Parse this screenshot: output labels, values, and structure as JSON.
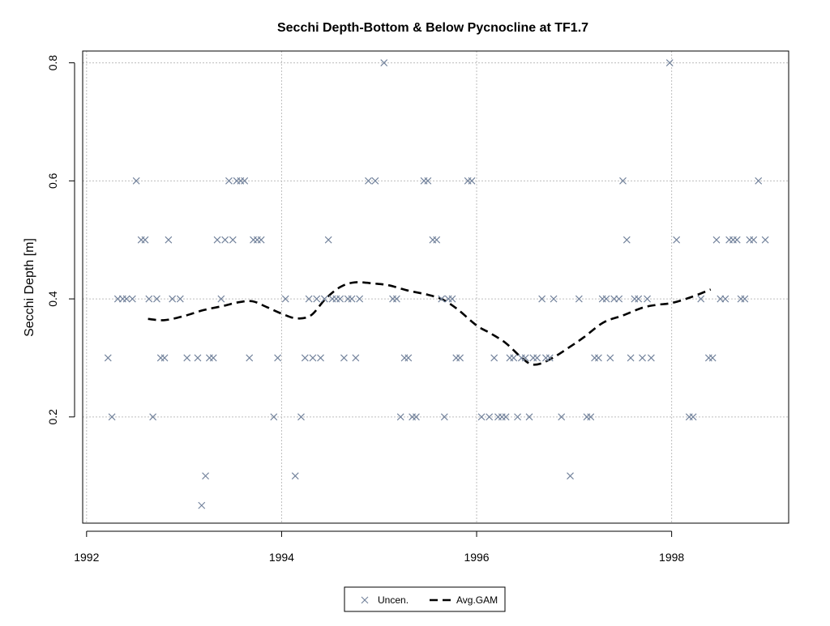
{
  "chart_data": {
    "type": "scatter",
    "title": "Secchi Depth-Bottom & Below Pycnocline at TF1.7",
    "xlabel": "",
    "ylabel": "Secchi Depth [m]",
    "xlim": [
      1991.96,
      1999.2
    ],
    "ylim": [
      0.02,
      0.82
    ],
    "x_ticks": [
      1992,
      1994,
      1996,
      1998
    ],
    "y_ticks": [
      0.2,
      0.4,
      0.6,
      0.8
    ],
    "x_tick_labels": [
      "1992",
      "1994",
      "1996",
      "1998"
    ],
    "y_tick_labels": [
      "0.2",
      "0.4",
      "0.6",
      "0.8"
    ],
    "grid": true,
    "legend": {
      "placement": "bottom-center"
    },
    "series": [
      {
        "name": "Uncen.",
        "marker": "x",
        "color": "#70809a",
        "points": [
          [
            1992.22,
            0.3
          ],
          [
            1992.26,
            0.2
          ],
          [
            1992.32,
            0.4
          ],
          [
            1992.37,
            0.4
          ],
          [
            1992.41,
            0.4
          ],
          [
            1992.47,
            0.4
          ],
          [
            1992.51,
            0.6
          ],
          [
            1992.56,
            0.5
          ],
          [
            1992.6,
            0.5
          ],
          [
            1992.64,
            0.4
          ],
          [
            1992.68,
            0.2
          ],
          [
            1992.72,
            0.4
          ],
          [
            1992.76,
            0.3
          ],
          [
            1992.8,
            0.3
          ],
          [
            1992.84,
            0.5
          ],
          [
            1992.88,
            0.4
          ],
          [
            1992.96,
            0.4
          ],
          [
            1993.03,
            0.3
          ],
          [
            1993.14,
            0.3
          ],
          [
            1993.18,
            0.05
          ],
          [
            1993.22,
            0.1
          ],
          [
            1993.26,
            0.3
          ],
          [
            1993.3,
            0.3
          ],
          [
            1993.34,
            0.5
          ],
          [
            1993.38,
            0.4
          ],
          [
            1993.42,
            0.5
          ],
          [
            1993.46,
            0.6
          ],
          [
            1993.5,
            0.5
          ],
          [
            1993.54,
            0.6
          ],
          [
            1993.58,
            0.6
          ],
          [
            1993.62,
            0.6
          ],
          [
            1993.67,
            0.3
          ],
          [
            1993.71,
            0.5
          ],
          [
            1993.75,
            0.5
          ],
          [
            1993.79,
            0.5
          ],
          [
            1993.92,
            0.2
          ],
          [
            1993.96,
            0.3
          ],
          [
            1994.04,
            0.4
          ],
          [
            1994.14,
            0.1
          ],
          [
            1994.2,
            0.2
          ],
          [
            1994.24,
            0.3
          ],
          [
            1994.28,
            0.4
          ],
          [
            1994.32,
            0.3
          ],
          [
            1994.36,
            0.4
          ],
          [
            1994.4,
            0.3
          ],
          [
            1994.44,
            0.4
          ],
          [
            1994.48,
            0.5
          ],
          [
            1994.52,
            0.4
          ],
          [
            1994.56,
            0.4
          ],
          [
            1994.6,
            0.4
          ],
          [
            1994.64,
            0.3
          ],
          [
            1994.68,
            0.4
          ],
          [
            1994.72,
            0.4
          ],
          [
            1994.76,
            0.3
          ],
          [
            1994.8,
            0.4
          ],
          [
            1994.89,
            0.6
          ],
          [
            1994.96,
            0.6
          ],
          [
            1995.05,
            0.8
          ],
          [
            1995.14,
            0.4
          ],
          [
            1995.18,
            0.4
          ],
          [
            1995.22,
            0.2
          ],
          [
            1995.26,
            0.3
          ],
          [
            1995.3,
            0.3
          ],
          [
            1995.34,
            0.2
          ],
          [
            1995.38,
            0.2
          ],
          [
            1995.46,
            0.6
          ],
          [
            1995.5,
            0.6
          ],
          [
            1995.55,
            0.5
          ],
          [
            1995.59,
            0.5
          ],
          [
            1995.64,
            0.4
          ],
          [
            1995.67,
            0.2
          ],
          [
            1995.71,
            0.4
          ],
          [
            1995.75,
            0.4
          ],
          [
            1995.79,
            0.3
          ],
          [
            1995.83,
            0.3
          ],
          [
            1995.91,
            0.6
          ],
          [
            1995.95,
            0.6
          ],
          [
            1996.05,
            0.2
          ],
          [
            1996.13,
            0.2
          ],
          [
            1996.18,
            0.3
          ],
          [
            1996.22,
            0.2
          ],
          [
            1996.26,
            0.2
          ],
          [
            1996.3,
            0.2
          ],
          [
            1996.34,
            0.3
          ],
          [
            1996.38,
            0.3
          ],
          [
            1996.42,
            0.2
          ],
          [
            1996.46,
            0.3
          ],
          [
            1996.5,
            0.3
          ],
          [
            1996.54,
            0.2
          ],
          [
            1996.58,
            0.3
          ],
          [
            1996.62,
            0.3
          ],
          [
            1996.67,
            0.4
          ],
          [
            1996.71,
            0.3
          ],
          [
            1996.75,
            0.3
          ],
          [
            1996.79,
            0.4
          ],
          [
            1996.87,
            0.2
          ],
          [
            1996.96,
            0.1
          ],
          [
            1997.05,
            0.4
          ],
          [
            1997.13,
            0.2
          ],
          [
            1997.17,
            0.2
          ],
          [
            1997.21,
            0.3
          ],
          [
            1997.25,
            0.3
          ],
          [
            1997.29,
            0.4
          ],
          [
            1997.33,
            0.4
          ],
          [
            1997.37,
            0.3
          ],
          [
            1997.41,
            0.4
          ],
          [
            1997.46,
            0.4
          ],
          [
            1997.5,
            0.6
          ],
          [
            1997.54,
            0.5
          ],
          [
            1997.58,
            0.3
          ],
          [
            1997.62,
            0.4
          ],
          [
            1997.66,
            0.4
          ],
          [
            1997.7,
            0.3
          ],
          [
            1997.75,
            0.4
          ],
          [
            1997.79,
            0.3
          ],
          [
            1997.98,
            0.8
          ],
          [
            1998.05,
            0.5
          ],
          [
            1998.18,
            0.2
          ],
          [
            1998.22,
            0.2
          ],
          [
            1998.3,
            0.4
          ],
          [
            1998.38,
            0.3
          ],
          [
            1998.42,
            0.3
          ],
          [
            1998.46,
            0.5
          ],
          [
            1998.5,
            0.4
          ],
          [
            1998.55,
            0.4
          ],
          [
            1998.59,
            0.5
          ],
          [
            1998.63,
            0.5
          ],
          [
            1998.67,
            0.5
          ],
          [
            1998.71,
            0.4
          ],
          [
            1998.75,
            0.4
          ],
          [
            1998.8,
            0.5
          ],
          [
            1998.84,
            0.5
          ],
          [
            1998.89,
            0.6
          ],
          [
            1998.96,
            0.5
          ]
        ]
      },
      {
        "name": "Avg.GAM",
        "line_style": "dashed",
        "color": "#000000",
        "points": [
          [
            1992.63,
            0.366
          ],
          [
            1992.8,
            0.364
          ],
          [
            1993.0,
            0.371
          ],
          [
            1993.2,
            0.381
          ],
          [
            1993.4,
            0.388
          ],
          [
            1993.55,
            0.394
          ],
          [
            1993.7,
            0.396
          ],
          [
            1993.85,
            0.386
          ],
          [
            1994.0,
            0.375
          ],
          [
            1994.15,
            0.367
          ],
          [
            1994.3,
            0.372
          ],
          [
            1994.45,
            0.4
          ],
          [
            1994.6,
            0.42
          ],
          [
            1994.75,
            0.428
          ],
          [
            1994.95,
            0.426
          ],
          [
            1995.1,
            0.423
          ],
          [
            1995.3,
            0.414
          ],
          [
            1995.5,
            0.407
          ],
          [
            1995.65,
            0.399
          ],
          [
            1995.8,
            0.383
          ],
          [
            1996.0,
            0.355
          ],
          [
            1996.15,
            0.341
          ],
          [
            1996.3,
            0.325
          ],
          [
            1996.45,
            0.302
          ],
          [
            1996.55,
            0.29
          ],
          [
            1996.65,
            0.29
          ],
          [
            1996.8,
            0.302
          ],
          [
            1996.95,
            0.318
          ],
          [
            1997.1,
            0.335
          ],
          [
            1997.3,
            0.36
          ],
          [
            1997.5,
            0.372
          ],
          [
            1997.7,
            0.385
          ],
          [
            1997.85,
            0.39
          ],
          [
            1998.0,
            0.393
          ],
          [
            1998.2,
            0.403
          ],
          [
            1998.4,
            0.416
          ]
        ]
      }
    ]
  }
}
